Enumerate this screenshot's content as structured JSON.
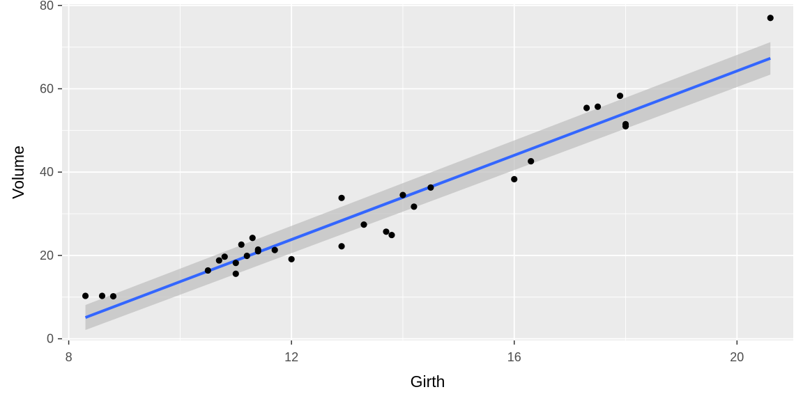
{
  "chart_data": {
    "type": "scatter",
    "title": "",
    "xlabel": "Girth",
    "ylabel": "Volume",
    "xlim": [
      7.88,
      21.01
    ],
    "ylim": [
      -0.4,
      80.3
    ],
    "x_ticks": [
      8,
      12,
      16,
      20
    ],
    "x_tick_labels": [
      "8",
      "12",
      "16",
      "20"
    ],
    "y_ticks": [
      0,
      20,
      40,
      60,
      80
    ],
    "y_tick_labels": [
      "0",
      "20",
      "40",
      "60",
      "80"
    ],
    "grid": true,
    "legend": "none",
    "points": [
      {
        "x": 8.3,
        "y": 10.3
      },
      {
        "x": 8.6,
        "y": 10.3
      },
      {
        "x": 8.8,
        "y": 10.2
      },
      {
        "x": 10.5,
        "y": 16.4
      },
      {
        "x": 10.7,
        "y": 18.8
      },
      {
        "x": 10.8,
        "y": 19.7
      },
      {
        "x": 11.0,
        "y": 15.6
      },
      {
        "x": 11.0,
        "y": 18.2
      },
      {
        "x": 11.1,
        "y": 22.6
      },
      {
        "x": 11.2,
        "y": 19.9
      },
      {
        "x": 11.3,
        "y": 24.2
      },
      {
        "x": 11.4,
        "y": 21.0
      },
      {
        "x": 11.4,
        "y": 21.4
      },
      {
        "x": 11.7,
        "y": 21.3
      },
      {
        "x": 12.0,
        "y": 19.1
      },
      {
        "x": 12.9,
        "y": 22.2
      },
      {
        "x": 12.9,
        "y": 33.8
      },
      {
        "x": 13.3,
        "y": 27.4
      },
      {
        "x": 13.7,
        "y": 25.7
      },
      {
        "x": 13.8,
        "y": 24.9
      },
      {
        "x": 14.0,
        "y": 34.5
      },
      {
        "x": 14.2,
        "y": 31.7
      },
      {
        "x": 14.5,
        "y": 36.3
      },
      {
        "x": 16.0,
        "y": 38.3
      },
      {
        "x": 16.3,
        "y": 42.6
      },
      {
        "x": 17.3,
        "y": 55.4
      },
      {
        "x": 17.5,
        "y": 55.7
      },
      {
        "x": 17.9,
        "y": 58.3
      },
      {
        "x": 18.0,
        "y": 51.5
      },
      {
        "x": 18.0,
        "y": 51.0
      },
      {
        "x": 20.6,
        "y": 77.0
      }
    ],
    "fit": {
      "method": "linear",
      "x": [
        8.3,
        20.6
      ],
      "y": [
        5.1,
        67.3
      ],
      "ci_lower": [
        2.1,
        63.4
      ],
      "ci_upper": [
        8.1,
        71.2
      ]
    },
    "colors": {
      "panel": "#ebebeb",
      "grid": "#ffffff",
      "point": "#000000",
      "fit_line": "#3366ff",
      "ribbon": "#bebebe"
    }
  }
}
